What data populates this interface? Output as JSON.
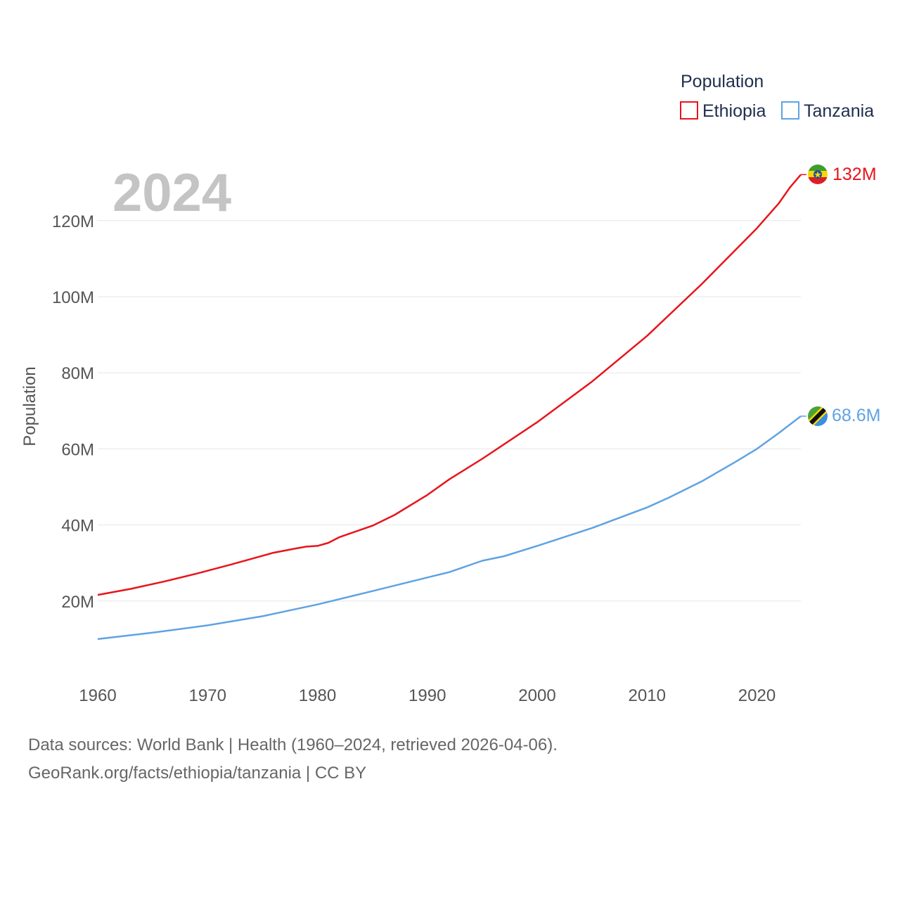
{
  "chart_data": {
    "type": "line",
    "title": "",
    "ylabel": "Population",
    "xlabel": "",
    "highlight_year": "2024",
    "xlim": [
      1960,
      2024
    ],
    "ylim": [
      0,
      132000000
    ],
    "x_ticks": [
      1960,
      1970,
      1980,
      1990,
      2000,
      2010,
      2020
    ],
    "x_tick_labels": [
      "1960",
      "1970",
      "1980",
      "1990",
      "2000",
      "2010",
      "2020"
    ],
    "y_ticks": [
      20000000,
      40000000,
      60000000,
      80000000,
      100000000,
      120000000
    ],
    "y_tick_labels": [
      "20M",
      "40M",
      "60M",
      "80M",
      "100M",
      "120M"
    ],
    "legend": {
      "title": "Population",
      "placement": "top-right",
      "entries": [
        "Ethiopia",
        "Tanzania"
      ]
    },
    "series": [
      {
        "name": "Ethiopia",
        "color": "#e8141b",
        "end_label": "132M",
        "flag": "ethiopia-flag",
        "points": [
          [
            1960,
            21.6
          ],
          [
            1963,
            23.2
          ],
          [
            1966,
            25.1
          ],
          [
            1969,
            27.2
          ],
          [
            1972,
            29.5
          ],
          [
            1975,
            31.9
          ],
          [
            1976,
            32.7
          ],
          [
            1978,
            33.8
          ],
          [
            1979,
            34.3
          ],
          [
            1980,
            34.5
          ],
          [
            1981,
            35.3
          ],
          [
            1982,
            36.8
          ],
          [
            1985,
            39.8
          ],
          [
            1987,
            42.6
          ],
          [
            1990,
            47.9
          ],
          [
            1992,
            52.0
          ],
          [
            1995,
            57.4
          ],
          [
            2000,
            67.0
          ],
          [
            2005,
            77.7
          ],
          [
            2010,
            89.7
          ],
          [
            2015,
            103.4
          ],
          [
            2020,
            118.0
          ],
          [
            2022,
            124.6
          ],
          [
            2023,
            128.7
          ],
          [
            2024,
            132.1
          ]
        ]
      },
      {
        "name": "Tanzania",
        "color": "#5fa3e3",
        "end_label": "68.6M",
        "flag": "tanzania-flag",
        "points": [
          [
            1960,
            10.0
          ],
          [
            1965,
            11.7
          ],
          [
            1970,
            13.6
          ],
          [
            1975,
            16.0
          ],
          [
            1980,
            19.1
          ],
          [
            1985,
            22.6
          ],
          [
            1990,
            26.2
          ],
          [
            1992,
            27.6
          ],
          [
            1993,
            28.6
          ],
          [
            1995,
            30.6
          ],
          [
            1997,
            31.8
          ],
          [
            2000,
            34.5
          ],
          [
            2005,
            39.2
          ],
          [
            2010,
            44.6
          ],
          [
            2012,
            47.2
          ],
          [
            2015,
            51.5
          ],
          [
            2018,
            56.5
          ],
          [
            2020,
            60.0
          ],
          [
            2022,
            64.2
          ],
          [
            2024,
            68.6
          ]
        ]
      }
    ]
  },
  "footer": {
    "line1": "Data sources: World Bank | Health (1960–2024, retrieved 2026-04-06).",
    "line2": "GeoRank.org/facts/ethiopia/tanzania | CC BY"
  }
}
